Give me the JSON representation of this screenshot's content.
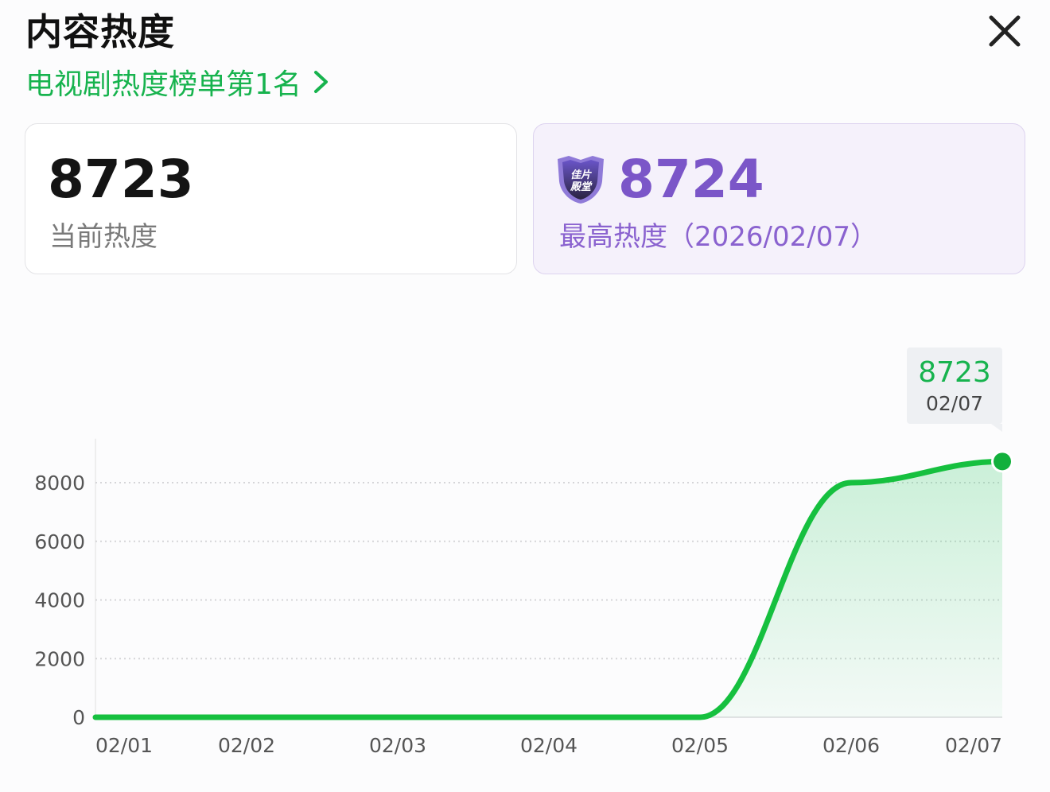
{
  "header": {
    "title": "内容热度",
    "rank_link": "电视剧热度榜单第1名"
  },
  "cards": {
    "current": {
      "value": "8723",
      "label": "当前热度"
    },
    "max": {
      "value": "8724",
      "label": "最高热度（2026/02/07）",
      "badge_text": "佳片殿堂"
    }
  },
  "colors": {
    "accent_green": "#17b34e",
    "accent_purple": "#7b56c8"
  },
  "icons": {
    "close": "close-icon",
    "chevron": "chevron-right-icon",
    "badge": "shield-badge-icon"
  },
  "tooltip": {
    "value": "8723",
    "date": "02/07"
  },
  "chart_data": {
    "type": "area",
    "categories": [
      "02/01",
      "02/02",
      "02/03",
      "02/04",
      "02/05",
      "02/06",
      "02/07"
    ],
    "values": [
      0,
      0,
      0,
      0,
      0,
      8000,
      8723
    ],
    "yticks": [
      0,
      2000,
      4000,
      6000,
      8000
    ],
    "ylim": [
      0,
      9500
    ],
    "grid": true,
    "xlabel": "",
    "ylabel": ""
  }
}
